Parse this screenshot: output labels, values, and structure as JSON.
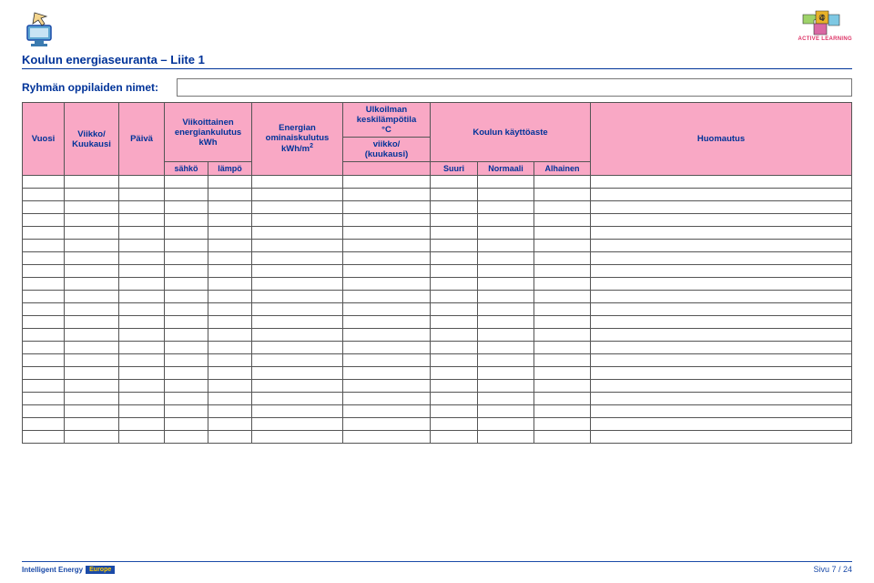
{
  "header_icons": {
    "left": "computer-pointer-icon",
    "right": "puzzle-icon",
    "right_label": "ACTIVE LEARNING"
  },
  "title": "Koulun energiaseuranta – Liite 1",
  "group": {
    "label": "Ryhmän oppilaiden nimet:"
  },
  "columns": {
    "vuosi": "Vuosi",
    "viikko": "Viikko/\nKuukausi",
    "paiva": "Päivä",
    "viikoittainen": "Viikoittainen\nenergiankulutus\nkWh",
    "sahko": "sähkö",
    "lampo": "lämpö",
    "energia": "Energian\nominaiskulutus",
    "energia_unit": "kWh/m",
    "ulko": "Ulkoilman\nkeskilämpötila\n°C",
    "ulko_sub": "viikko/\n(kuukausi)",
    "kaytto": "Koulun käyttöaste",
    "suuri": "Suuri",
    "normaali": "Normaali",
    "alhainen": "Alhainen",
    "huomautus": "Huomautus"
  },
  "empty_rows": 21,
  "footer": {
    "logo_text": "Intelligent Energy",
    "logo_eu": "Europe",
    "page": "Sivu 7 / 24"
  },
  "colors": {
    "accent": "#003399",
    "header_bg": "#f9a8c5"
  }
}
